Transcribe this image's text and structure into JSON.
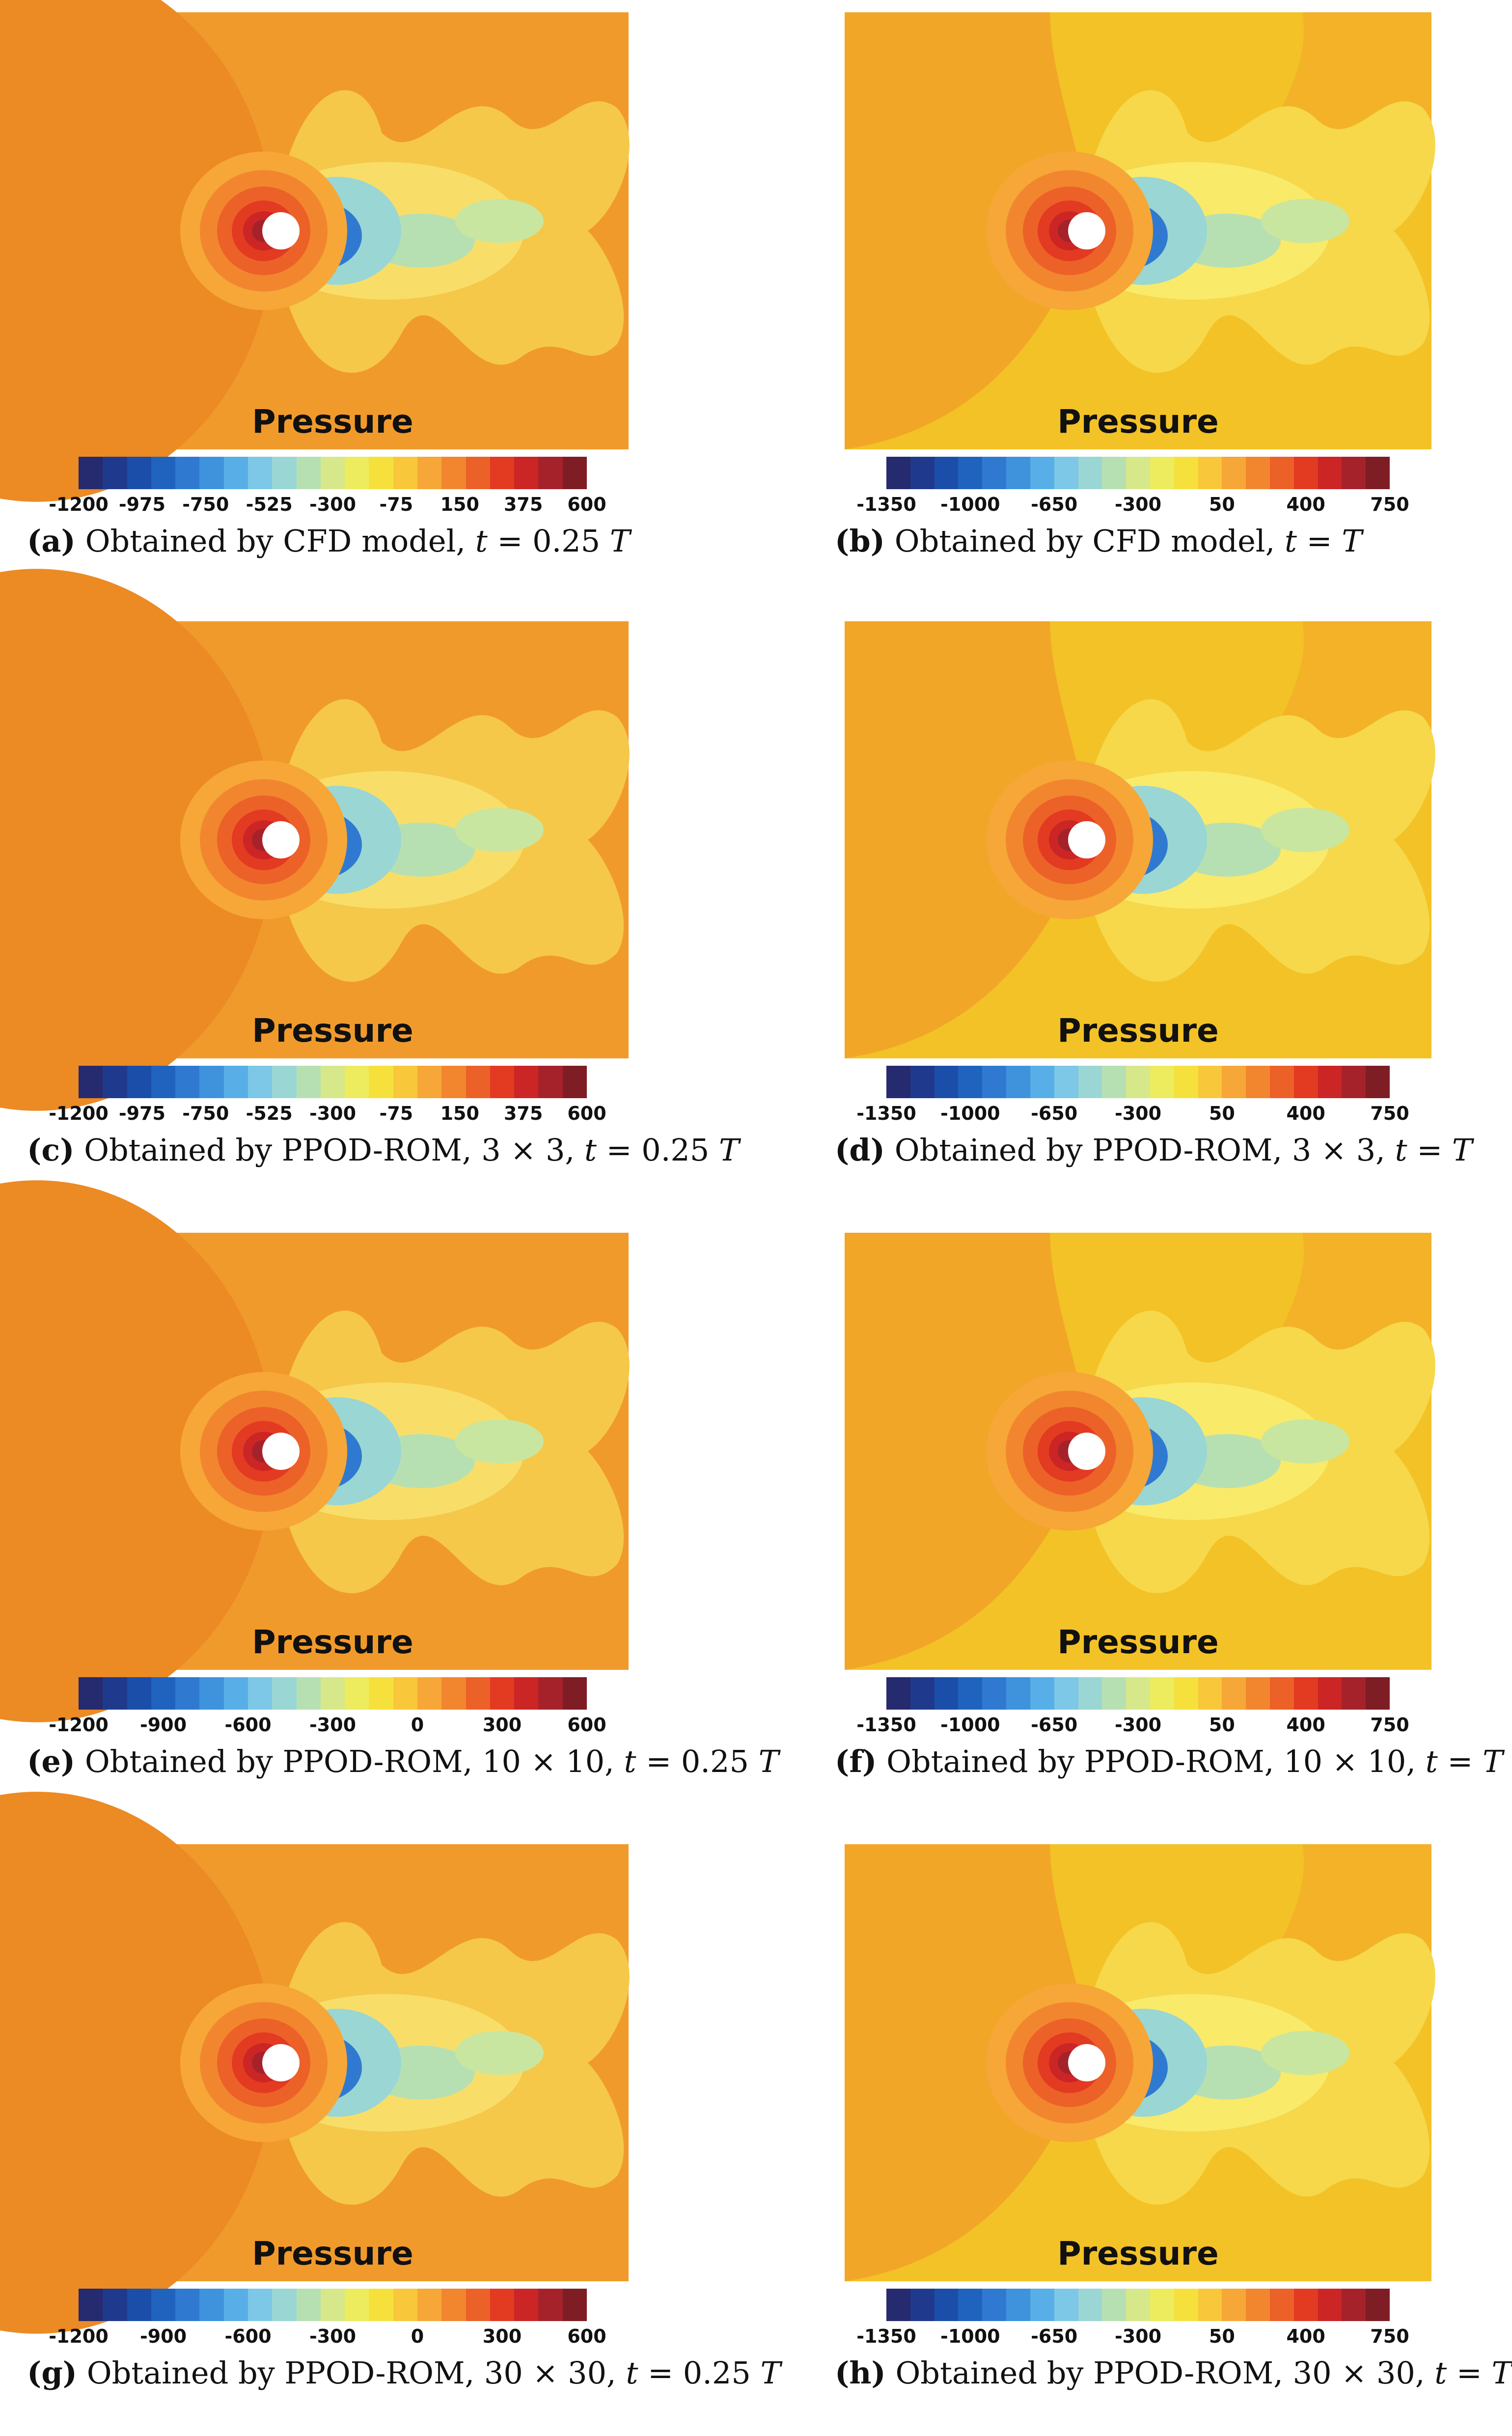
{
  "field_title": "Pressure",
  "colors": {
    "scale": [
      "#262a6e",
      "#1f3a8c",
      "#1b4ea8",
      "#1f63bf",
      "#2f7ad0",
      "#3f93dd",
      "#58aee6",
      "#7cc8e6",
      "#9ad6d4",
      "#b7e0b2",
      "#d6e88a",
      "#ecec5e",
      "#f6e13c",
      "#f9c73a",
      "#f6a737",
      "#f2862f",
      "#ec6128",
      "#e33a22",
      "#cb2525",
      "#a5222a",
      "#7e1d24"
    ],
    "background_a": "#f19a2c",
    "background_b": "#f3c226",
    "far_field_a": "#ec8a24",
    "far_field_b": "#f2a628"
  },
  "panels": [
    {
      "id": "a",
      "label": "(a)",
      "caption": "Obtained by CFD model, t = 0.25 T",
      "caption_parts": {
        "pre": "Obtained by CFD model, ",
        "var": "t",
        "eq": " = 0.25 ",
        "T": "T"
      },
      "colorbar_ticks": [
        "-1200",
        "-975",
        "-750",
        "-525",
        "-300",
        "-75",
        "150",
        "375",
        "600"
      ],
      "time": "0.25T"
    },
    {
      "id": "b",
      "label": "(b)",
      "caption": "Obtained by CFD model, t = T",
      "caption_parts": {
        "pre": "Obtained by CFD model, ",
        "var": "t",
        "eq": " = ",
        "T": "T"
      },
      "colorbar_ticks": [
        "-1350",
        "-1000",
        "-650",
        "-300",
        "50",
        "400",
        "750"
      ],
      "time": "T"
    },
    {
      "id": "c",
      "label": "(c)",
      "caption": "Obtained by PPOD-ROM, 3 × 3, t = 0.25 T",
      "caption_parts": {
        "pre": "Obtained by PPOD-ROM, 3 × 3, ",
        "var": "t",
        "eq": " = 0.25 ",
        "T": "T"
      },
      "colorbar_ticks": [
        "-1200",
        "-975",
        "-750",
        "-525",
        "-300",
        "-75",
        "150",
        "375",
        "600"
      ],
      "time": "0.25T"
    },
    {
      "id": "d",
      "label": "(d)",
      "caption": "Obtained by PPOD-ROM, 3 × 3, t = T",
      "caption_parts": {
        "pre": "Obtained by PPOD-ROM, 3 × 3, ",
        "var": "t",
        "eq": " = ",
        "T": "T"
      },
      "colorbar_ticks": [
        "-1350",
        "-1000",
        "-650",
        "-300",
        "50",
        "400",
        "750"
      ],
      "time": "T"
    },
    {
      "id": "e",
      "label": "(e)",
      "caption": "Obtained by PPOD-ROM, 10 × 10, t = 0.25 T",
      "caption_parts": {
        "pre": "Obtained by PPOD-ROM, 10 × 10, ",
        "var": "t",
        "eq": " = 0.25 ",
        "T": "T"
      },
      "colorbar_ticks": [
        "-1200",
        "-900",
        "-600",
        "-300",
        "0",
        "300",
        "600"
      ],
      "time": "0.25T"
    },
    {
      "id": "f",
      "label": "(f)",
      "caption": "Obtained by PPOD-ROM, 10 × 10, t = T",
      "caption_parts": {
        "pre": "Obtained by PPOD-ROM, 10 × 10, ",
        "var": "t",
        "eq": " = ",
        "T": "T"
      },
      "colorbar_ticks": [
        "-1350",
        "-1000",
        "-650",
        "-300",
        "50",
        "400",
        "750"
      ],
      "time": "T"
    },
    {
      "id": "g",
      "label": "(g)",
      "caption": "Obtained by PPOD-ROM, 30 × 30, t = 0.25 T",
      "caption_parts": {
        "pre": "Obtained by PPOD-ROM, 30 × 30, ",
        "var": "t",
        "eq": " = 0.25 ",
        "T": "T"
      },
      "colorbar_ticks": [
        "-1200",
        "-900",
        "-600",
        "-300",
        "0",
        "300",
        "600"
      ],
      "time": "0.25T"
    },
    {
      "id": "h",
      "label": "(h)",
      "caption": "Obtained by PPOD-ROM, 30 × 30, t = T",
      "caption_parts": {
        "pre": "Obtained by PPOD-ROM, 30 × 30, ",
        "var": "t",
        "eq": " = ",
        "T": "T"
      },
      "colorbar_ticks": [
        "-1350",
        "-1000",
        "-650",
        "-300",
        "50",
        "400",
        "750"
      ],
      "time": "T"
    }
  ]
}
